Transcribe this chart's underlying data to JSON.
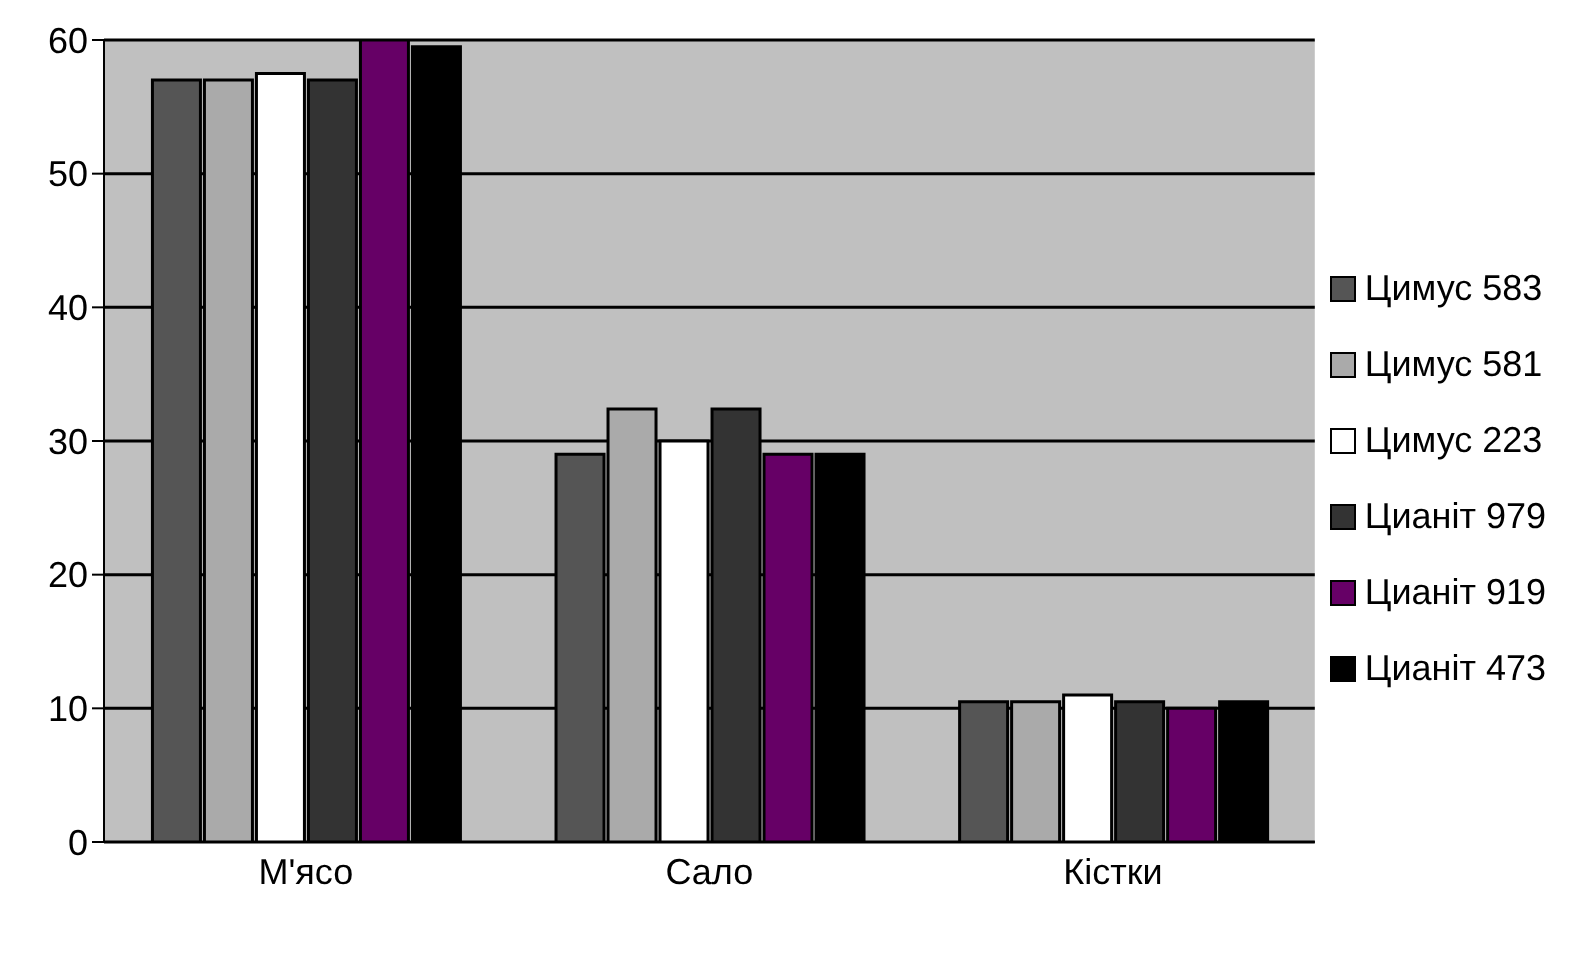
{
  "chart_data": {
    "type": "bar",
    "categories": [
      "М'ясо",
      "Сало",
      "Кістки"
    ],
    "series": [
      {
        "name": "Цимус 583",
        "color": "#555555",
        "values": [
          57,
          29,
          10.5
        ]
      },
      {
        "name": "Цимус 581",
        "color": "#aaaaaa",
        "values": [
          57,
          32.4,
          10.5
        ]
      },
      {
        "name": "Цимус 223",
        "color": "#ffffff",
        "values": [
          57.5,
          30,
          11
        ]
      },
      {
        "name": "Цианіт 979",
        "color": "#333333",
        "values": [
          57,
          32.4,
          10.5
        ]
      },
      {
        "name": "Цианіт 919",
        "color": "#660066",
        "values": [
          60,
          29,
          10
        ]
      },
      {
        "name": "Цианіт 473",
        "color": "#000000",
        "values": [
          59.5,
          29,
          10.5
        ]
      }
    ],
    "ylim": [
      0,
      60
    ],
    "yticks": [
      0,
      10,
      20,
      30,
      40,
      50,
      60
    ],
    "grid": "y",
    "legend": "right"
  }
}
